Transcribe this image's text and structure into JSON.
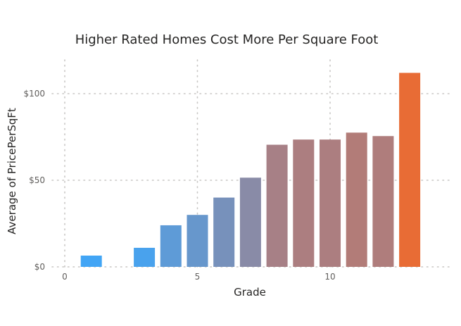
{
  "chart_data": {
    "type": "bar",
    "title": "Higher Rated Homes Cost More Per Square Foot",
    "xlabel": "Grade",
    "ylabel": "Average of PricePerSqFt",
    "x": [
      1,
      3,
      4,
      5,
      6,
      7,
      8,
      9,
      10,
      11,
      12,
      13
    ],
    "values": [
      6.5,
      11,
      24,
      30,
      40,
      51.5,
      70.5,
      73.5,
      73.5,
      77.5,
      75.5,
      112
    ],
    "xlim": [
      0,
      14
    ],
    "ylim": [
      0,
      120
    ],
    "x_ticks": [
      0,
      5,
      10
    ],
    "x_tick_labels": [
      "0",
      "5",
      "10"
    ],
    "y_ticks": [
      0,
      50,
      100
    ],
    "y_tick_labels": [
      "$0",
      "$50",
      "$100"
    ],
    "grid": true,
    "colors": {
      "low": "#42a5f5",
      "high": "#e86c35",
      "min_value": 6.5,
      "max_value": 112
    }
  }
}
